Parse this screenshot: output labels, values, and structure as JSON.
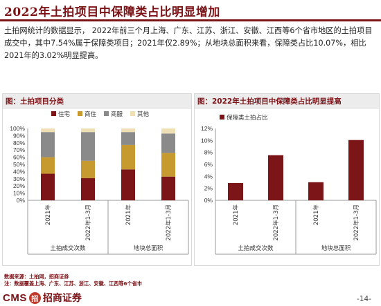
{
  "title": "2022年土拍项目中保障类占比明显增加",
  "paragraph": "土拍网统计的数据显示， 2022年前三个月上海、广东、江苏、浙江、安徽、江西等6个省市地区的土拍项目成交中，其中7.54%属于保障类项目；2021年仅2.89%；从地块总面积来看，保障类占比10.07%，相比2021年的3.02%明显提高。",
  "left_panel": {
    "heading": "图：土拍项目分类"
  },
  "right_panel": {
    "heading": "图：2022年土拍项目中保障类占比明显提高"
  },
  "chart_data": [
    {
      "type": "bar",
      "stacked": true,
      "title": "图：土拍项目分类",
      "categories": [
        "2021年",
        "2022年1-3月",
        "2021年",
        "2022年1-3月"
      ],
      "groups": [
        "土拍成交次数",
        "地块总面积"
      ],
      "series": [
        {
          "name": "住宅",
          "color": "#7b1518",
          "values": [
            37,
            31,
            43,
            33
          ]
        },
        {
          "name": "商住",
          "color": "#c79a2f",
          "values": [
            23,
            24,
            34,
            33
          ]
        },
        {
          "name": "商服",
          "color": "#8a8a8a",
          "values": [
            35,
            40,
            18,
            27
          ]
        },
        {
          "name": "其他",
          "color": "#eedfb4",
          "values": [
            5,
            5,
            5,
            7
          ]
        }
      ],
      "yticks": [
        "0%",
        "10%",
        "20%",
        "30%",
        "40%",
        "50%",
        "60%",
        "70%",
        "80%",
        "90%",
        "100%"
      ],
      "ylim": [
        0,
        100
      ],
      "legend": "top"
    },
    {
      "type": "bar",
      "title": "图：2022年土拍项目中保障类占比明显提高",
      "categories": [
        "2021年",
        "2022年1-3月",
        "2021年",
        "2022年1-3月"
      ],
      "groups": [
        "土拍成交次数",
        "地块总面积"
      ],
      "series": [
        {
          "name": "保障类土拍占比",
          "color": "#7b1518",
          "values": [
            2.89,
            7.54,
            3.02,
            10.07
          ]
        }
      ],
      "yticks": [
        "0%",
        "2%",
        "4%",
        "6%",
        "8%",
        "10%",
        "12%"
      ],
      "ylim": [
        0,
        12
      ],
      "legend": "top-left"
    }
  ],
  "notes": {
    "source": "数据来源：土拍网，招商证券",
    "remark": "注：数据覆盖上海、广东、江苏、浙江、安徽、江西等6个省市"
  },
  "footer": {
    "logo_latin": "CMS",
    "logo_mark": "招",
    "logo_cn": "招商证券",
    "page": "-14-"
  },
  "colors": {
    "accent": "#7a1216",
    "panel_header": "#ececec"
  }
}
